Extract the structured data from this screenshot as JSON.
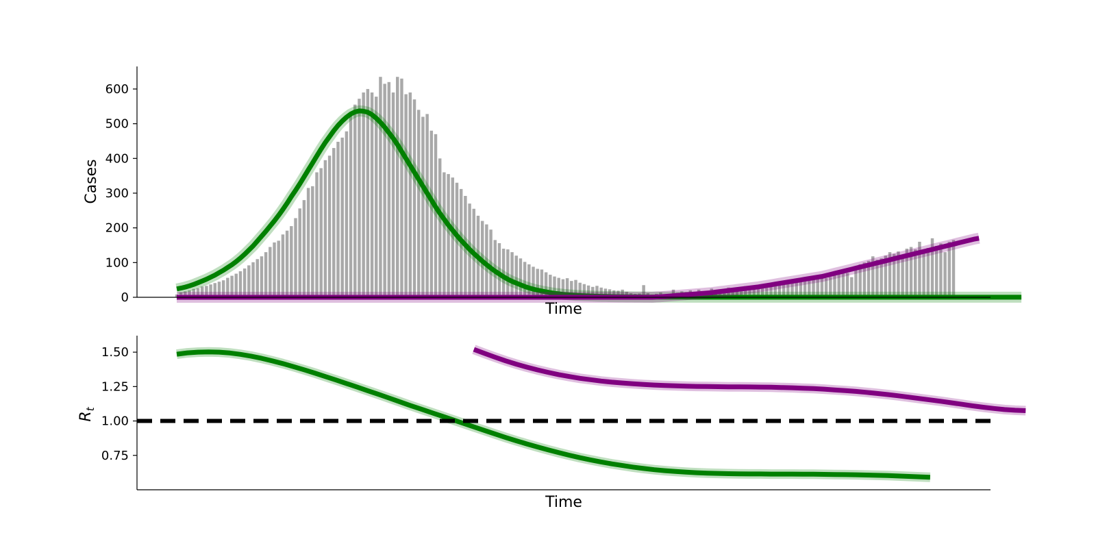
{
  "chart_data": [
    {
      "type": "bar",
      "xlabel": "Time",
      "ylabel": "Cases",
      "ylim": [
        0,
        665
      ],
      "yticks": [
        "0",
        "100",
        "200",
        "300",
        "400",
        "500",
        "600"
      ],
      "grid": false,
      "cases": [
        8,
        14,
        17,
        20,
        24,
        26,
        31,
        33,
        37,
        41,
        45,
        49,
        56,
        62,
        68,
        75,
        83,
        92,
        101,
        110,
        118,
        130,
        145,
        158,
        163,
        181,
        192,
        205,
        228,
        256,
        280,
        315,
        320,
        360,
        372,
        395,
        408,
        430,
        448,
        460,
        478,
        530,
        555,
        572,
        590,
        600,
        590,
        578,
        635,
        615,
        620,
        590,
        635,
        630,
        585,
        590,
        570,
        540,
        520,
        528,
        480,
        470,
        400,
        360,
        355,
        345,
        330,
        312,
        292,
        270,
        255,
        235,
        220,
        210,
        195,
        165,
        156,
        140,
        138,
        130,
        120,
        112,
        102,
        95,
        88,
        82,
        80,
        72,
        65,
        60,
        56,
        52,
        55,
        47,
        50,
        42,
        38,
        34,
        30,
        33,
        28,
        25,
        23,
        20,
        19,
        22,
        16,
        12,
        10,
        11,
        35,
        12,
        8,
        10,
        14,
        9,
        8,
        22,
        13,
        17,
        15,
        20,
        16,
        22,
        12,
        18,
        25,
        20,
        16,
        19,
        28,
        22,
        24,
        20,
        32,
        25,
        30,
        35,
        32,
        27,
        36,
        40,
        38,
        42,
        46,
        45,
        50,
        52,
        56,
        48,
        55,
        60,
        62,
        55,
        58,
        65,
        68,
        75,
        70,
        58,
        82,
        95,
        100,
        105,
        118,
        108,
        112,
        120,
        130,
        125,
        132,
        118,
        140,
        145,
        138,
        160,
        132,
        142,
        170,
        148,
        155,
        130,
        160,
        165
      ],
      "series": [
        {
          "name": "",
          "color": "#008000",
          "x_start": 0,
          "values": [
            24,
            26.5,
            29.5,
            33,
            37,
            42,
            47,
            52,
            58,
            64,
            71,
            78,
            86,
            94,
            103,
            113,
            124,
            136,
            148,
            162,
            176,
            190,
            205,
            220,
            236,
            253,
            271,
            290,
            308,
            327,
            347,
            367,
            387,
            407,
            427,
            446,
            463,
            480,
            495,
            508,
            519,
            528,
            534,
            537,
            536,
            533,
            526,
            516,
            504,
            490,
            474,
            458,
            440,
            420,
            400,
            380,
            360,
            340,
            320,
            300,
            280,
            260,
            242,
            225,
            208,
            193,
            178,
            164,
            151,
            138,
            126,
            115,
            104,
            94,
            84,
            75,
            67,
            59,
            52,
            46,
            41,
            36,
            31,
            27,
            23.5,
            20.5,
            18,
            15.5,
            13.5,
            11.5,
            10,
            8.5,
            7.5,
            6.5,
            5.7,
            5,
            4.4,
            3.9,
            3.4,
            3,
            2.6,
            2.3,
            2,
            1.8,
            1.6,
            1.4,
            1.2,
            1.1,
            1,
            0.9,
            0.8,
            0.7,
            0.6,
            0.5,
            0.5,
            0.4,
            0.4,
            0.3,
            0.3,
            0.3,
            0.2,
            0.2,
            0.2,
            0.2,
            0.1,
            0.1,
            0.1,
            0.1,
            0.1,
            0.1,
            0.1,
            0.1,
            0.1,
            0.1,
            0.1,
            0.1,
            0.1,
            0.1,
            0.1,
            0.1,
            0.1,
            0.1,
            0.1,
            0.1,
            0.1,
            0.1,
            0.1,
            0.1,
            0.1,
            0.1,
            0.1,
            0.1,
            0.1,
            0.1,
            0.1,
            0.1,
            0.1,
            0.1,
            0.1,
            0.1,
            0.1,
            0.1,
            0.1,
            0.1,
            0.1,
            0.1,
            0.1,
            0.1,
            0.1,
            0.1,
            0.1,
            0.1,
            0.1,
            0.1,
            0.1,
            0.1,
            0.1,
            0.1,
            0.1,
            0.1,
            0.1,
            0.1,
            0.1,
            0.1,
            0.1,
            0.1,
            0.1,
            0.1,
            0.1,
            0.1,
            0.1,
            0.1,
            0.1,
            0.1,
            0.1,
            0.1,
            0.1,
            0.1,
            0.1,
            0.1
          ]
        },
        {
          "name": "",
          "color": "#800080",
          "x_start": 0,
          "values": [
            0,
            0,
            0,
            0,
            0,
            0,
            0,
            0,
            0,
            0,
            0,
            0,
            0,
            0,
            0,
            0,
            0,
            0,
            0,
            0,
            0,
            0,
            0,
            0,
            0,
            0,
            0,
            0,
            0,
            0,
            0,
            0,
            0,
            0,
            0,
            0,
            0,
            0,
            0,
            0,
            0,
            0,
            0,
            0,
            0,
            0,
            0,
            0,
            0,
            0,
            0,
            0,
            0,
            0,
            0,
            0,
            0,
            0,
            0,
            0,
            0,
            0,
            0,
            0,
            0,
            0,
            0,
            0,
            0,
            0,
            0,
            0,
            0,
            0,
            0,
            0,
            0,
            0,
            0,
            0,
            0,
            0,
            0,
            0,
            0,
            0,
            0,
            0,
            0,
            0,
            0,
            0,
            0,
            0,
            0,
            0,
            0,
            0,
            0,
            0,
            0,
            0,
            0,
            0,
            0,
            0,
            0,
            0,
            0,
            0,
            0,
            0,
            0,
            1,
            1.5,
            2.5,
            3.5,
            4.5,
            5.5,
            6.5,
            7.5,
            8.5,
            9.5,
            10.5,
            11.5,
            12.5,
            13.5,
            15,
            16.5,
            18,
            19.5,
            21,
            22.5,
            24,
            25.5,
            27,
            28.5,
            30,
            32,
            34,
            36,
            38,
            40,
            42,
            44,
            46,
            48,
            50,
            52,
            54,
            56,
            58,
            60,
            63,
            66,
            69,
            72,
            75,
            78,
            81,
            84,
            87,
            90,
            93,
            96,
            99,
            102,
            105,
            108,
            111,
            114,
            117,
            120,
            123,
            126,
            129,
            132,
            135,
            138,
            141,
            144,
            147,
            150,
            153,
            156,
            159,
            162,
            165,
            168,
            170
          ]
        }
      ]
    },
    {
      "type": "line",
      "xlabel": "Time",
      "ylabel": "R",
      "ylabel_subscript": "t",
      "ylim": [
        0.5,
        1.62
      ],
      "yticks": [
        "0.75",
        "1.00",
        "1.25",
        "1.50"
      ],
      "grid": false,
      "reference_line": 1.0,
      "series": [
        {
          "name": "",
          "color": "#008000",
          "x_start": 0,
          "values": [
            1.485,
            1.495,
            1.5,
            1.502,
            1.5,
            1.494,
            1.484,
            1.471,
            1.455,
            1.437,
            1.417,
            1.395,
            1.372,
            1.348,
            1.323,
            1.298,
            1.272,
            1.246,
            1.22,
            1.194,
            1.167,
            1.14,
            1.113,
            1.087,
            1.061,
            1.035,
            1.009,
            0.983,
            0.957,
            0.931,
            0.905,
            0.88,
            0.856,
            0.833,
            0.811,
            0.79,
            0.77,
            0.751,
            0.733,
            0.717,
            0.702,
            0.688,
            0.676,
            0.665,
            0.655,
            0.646,
            0.639,
            0.633,
            0.628,
            0.624,
            0.621,
            0.619,
            0.617,
            0.616,
            0.615,
            0.615,
            0.614,
            0.614,
            0.614,
            0.613,
            0.613,
            0.612,
            0.611,
            0.61,
            0.609,
            0.607,
            0.605,
            0.603,
            0.6,
            0.597,
            0.594,
            0.591
          ]
        },
        {
          "name": "",
          "color": "#800080",
          "x_start": 70,
          "values": [
            1.52,
            1.491,
            1.463,
            1.437,
            1.413,
            1.391,
            1.371,
            1.353,
            1.337,
            1.323,
            1.31,
            1.3,
            1.29,
            1.282,
            1.276,
            1.27,
            1.265,
            1.261,
            1.258,
            1.255,
            1.253,
            1.251,
            1.25,
            1.249,
            1.248,
            1.248,
            1.247,
            1.246,
            1.245,
            1.243,
            1.241,
            1.238,
            1.235,
            1.231,
            1.226,
            1.221,
            1.215,
            1.208,
            1.2,
            1.192,
            1.183,
            1.173,
            1.163,
            1.153,
            1.143,
            1.132,
            1.121,
            1.11,
            1.1,
            1.091,
            1.083,
            1.078,
            1.075
          ]
        }
      ]
    }
  ]
}
